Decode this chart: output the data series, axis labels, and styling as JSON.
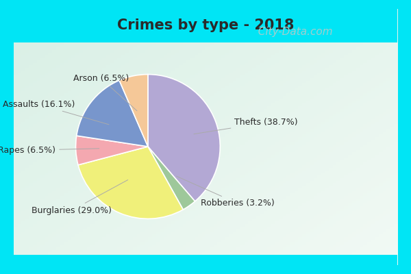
{
  "title": "Crimes by type - 2018",
  "title_fontsize": 15,
  "title_fontweight": "bold",
  "title_color": "#2a2a2a",
  "slices": [
    {
      "label": "Thefts",
      "pct": 38.7,
      "color": "#b3a8d4"
    },
    {
      "label": "Robberies",
      "pct": 3.2,
      "color": "#9ec89a"
    },
    {
      "label": "Burglaries",
      "pct": 29.0,
      "color": "#f0f07a"
    },
    {
      "label": "Rapes",
      "pct": 6.5,
      "color": "#f4a8b0"
    },
    {
      "label": "Assaults",
      "pct": 16.1,
      "color": "#7896cc"
    },
    {
      "label": "Arson",
      "pct": 6.5,
      "color": "#f5c898"
    }
  ],
  "border_color": "#00e5f5",
  "border_width": 12,
  "bg_color_topleft": "#d8f0e8",
  "bg_color_bottomright": "#f0f8f4",
  "label_fontsize": 9,
  "label_color": "#2a2a2a",
  "line_color": "#aaaaaa",
  "watermark_text": "  City-Data.com",
  "watermark_color": "#a0cece",
  "watermark_fontsize": 11
}
